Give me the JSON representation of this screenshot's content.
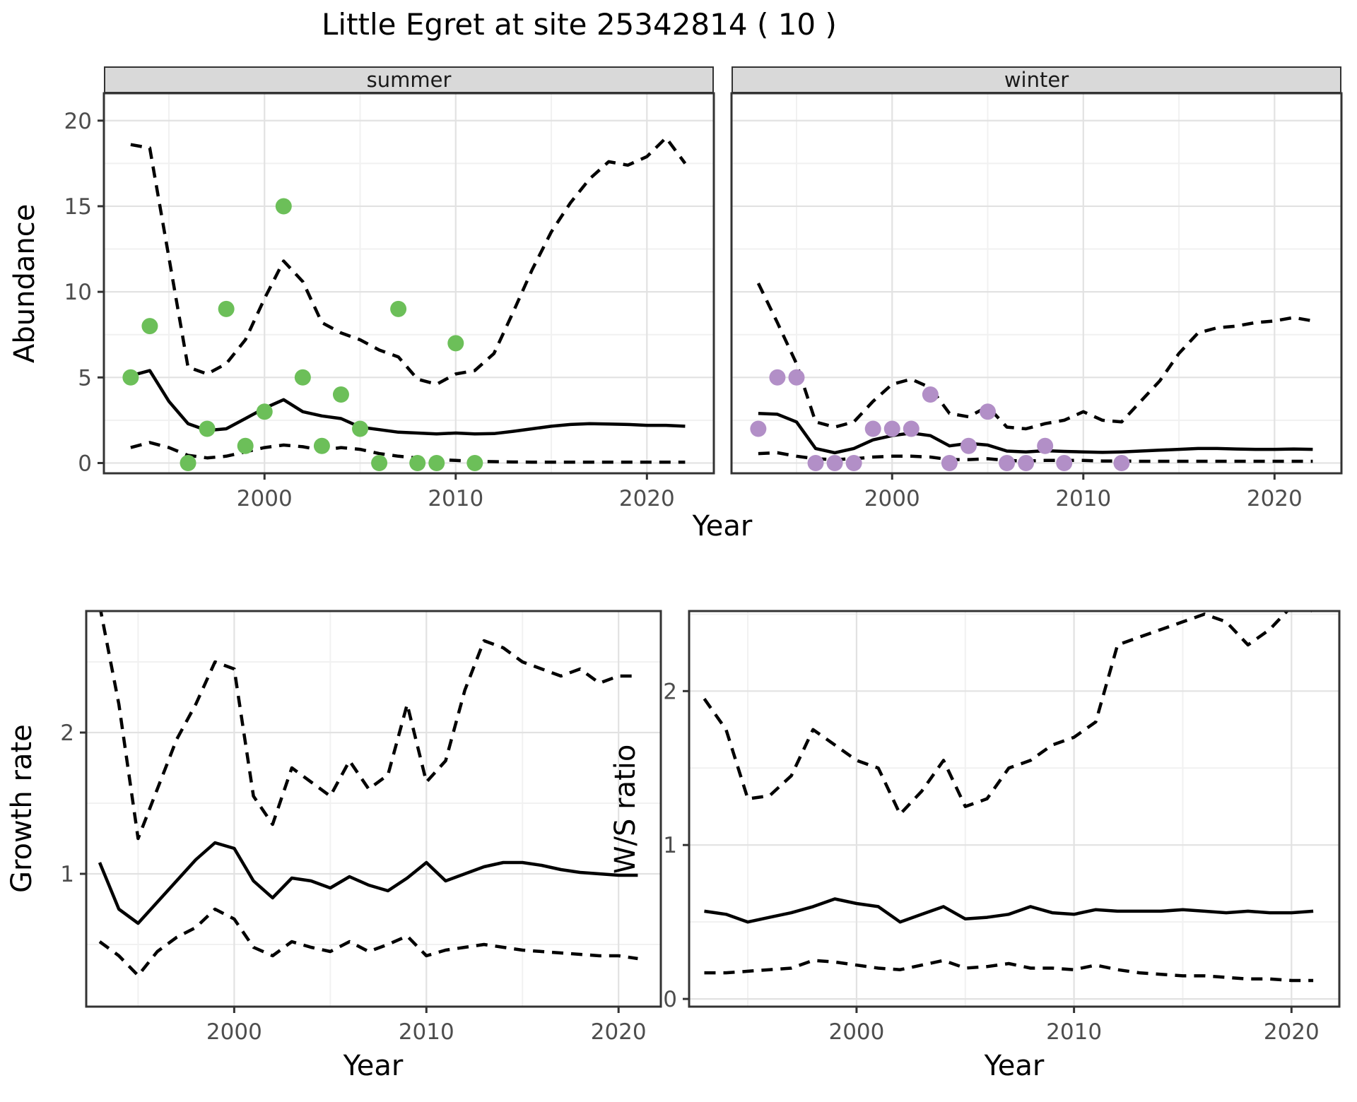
{
  "figure": {
    "title": "Little Egret at site 25342814 ( 10 )",
    "colors": {
      "summer_point": "#6CBF59",
      "winter_point": "#B28FC7",
      "line": "#000000",
      "grid_major": "#E2E2E2",
      "grid_minor": "#F1F1F1",
      "strip_bg": "#D9D9D9",
      "axis_text": "#4D4D4D",
      "panel_border": "#333333"
    }
  },
  "chart_data": [
    {
      "id": "abundance-summer",
      "type": "line",
      "facet_label": "summer",
      "ylabel": "Abundance",
      "xlabel": "Year",
      "xlim": [
        1991.6,
        2023.5
      ],
      "ylim": [
        -0.6,
        21.6
      ],
      "xticks": [
        2000,
        2010,
        2020
      ],
      "xticks_minor": [
        1995,
        2005,
        2015
      ],
      "yticks": [
        0,
        5,
        10,
        15,
        20
      ],
      "yticks_minor": [
        2.5,
        7.5,
        12.5,
        17.5
      ],
      "show_ytick_labels": true,
      "grid": true,
      "legend": "none",
      "points": {
        "color": "#6CBF59",
        "x": [
          1993,
          1994,
          1996,
          1997,
          1998,
          1999,
          2000,
          2001,
          2002,
          2003,
          2004,
          2005,
          2006,
          2007,
          2008,
          2009,
          2010,
          2011
        ],
        "y": [
          5,
          8,
          0,
          2,
          9,
          1,
          3,
          15,
          5,
          1,
          4,
          2,
          0,
          9,
          0,
          0,
          7,
          0
        ]
      },
      "series": [
        {
          "name": "median",
          "style": "solid",
          "x": [
            1993,
            1994,
            1995,
            1996,
            1997,
            1998,
            1999,
            2000,
            2001,
            2002,
            2003,
            2004,
            2005,
            2006,
            2007,
            2008,
            2009,
            2010,
            2011,
            2012,
            2013,
            2014,
            2015,
            2016,
            2017,
            2018,
            2019,
            2020,
            2021,
            2022
          ],
          "y": [
            5.1,
            5.4,
            3.6,
            2.3,
            1.9,
            2.0,
            2.6,
            3.2,
            3.7,
            3.0,
            2.75,
            2.6,
            2.1,
            1.95,
            1.8,
            1.75,
            1.7,
            1.75,
            1.7,
            1.72,
            1.85,
            2.0,
            2.15,
            2.25,
            2.3,
            2.28,
            2.25,
            2.2,
            2.2,
            2.15
          ]
        },
        {
          "name": "upper-ci",
          "style": "dashed",
          "x": [
            1993,
            1994,
            1995,
            1996,
            1997,
            1998,
            1999,
            2000,
            2001,
            2002,
            2003,
            2004,
            2005,
            2006,
            2007,
            2008,
            2009,
            2010,
            2011,
            2012,
            2013,
            2014,
            2015,
            2016,
            2017,
            2018,
            2019,
            2020,
            2021,
            2022
          ],
          "y": [
            18.6,
            18.4,
            12.0,
            5.6,
            5.2,
            5.8,
            7.2,
            9.6,
            11.8,
            10.6,
            8.2,
            7.6,
            7.2,
            6.6,
            6.2,
            4.9,
            4.6,
            5.2,
            5.4,
            6.4,
            8.8,
            11.3,
            13.5,
            15.2,
            16.6,
            17.6,
            17.4,
            17.9,
            19.0,
            17.5
          ]
        },
        {
          "name": "lower-ci",
          "style": "dashed",
          "x": [
            1993,
            1994,
            1995,
            1996,
            1997,
            1998,
            1999,
            2000,
            2001,
            2002,
            2003,
            2004,
            2005,
            2006,
            2007,
            2008,
            2009,
            2010,
            2011,
            2012,
            2013,
            2014,
            2015,
            2016,
            2017,
            2018,
            2019,
            2020,
            2021,
            2022
          ],
          "y": [
            0.9,
            1.2,
            0.9,
            0.45,
            0.3,
            0.4,
            0.65,
            0.9,
            1.05,
            0.95,
            0.75,
            0.9,
            0.8,
            0.55,
            0.4,
            0.3,
            0.2,
            0.15,
            0.1,
            0.08,
            0.06,
            0.05,
            0.05,
            0.05,
            0.05,
            0.05,
            0.05,
            0.05,
            0.05,
            0.05
          ]
        }
      ]
    },
    {
      "id": "abundance-winter",
      "type": "line",
      "facet_label": "winter",
      "ylabel": "Abundance",
      "xlabel": "Year",
      "xlim": [
        1991.6,
        2023.5
      ],
      "ylim": [
        -0.6,
        21.6
      ],
      "xticks": [
        2000,
        2010,
        2020
      ],
      "xticks_minor": [
        1995,
        2005,
        2015
      ],
      "yticks": [
        0,
        5,
        10,
        15,
        20
      ],
      "yticks_minor": [
        2.5,
        7.5,
        12.5,
        17.5
      ],
      "show_ytick_labels": false,
      "grid": true,
      "legend": "none",
      "points": {
        "color": "#B28FC7",
        "x": [
          1993,
          1994,
          1995,
          1996,
          1997,
          1998,
          1999,
          2000,
          2001,
          2002,
          2003,
          2004,
          2005,
          2006,
          2007,
          2008,
          2009,
          2012
        ],
        "y": [
          2,
          5,
          5,
          0,
          0,
          0,
          2,
          2,
          2,
          4,
          0,
          1,
          3,
          0,
          0,
          1,
          0,
          0
        ]
      },
      "series": [
        {
          "name": "median",
          "style": "solid",
          "x": [
            1993,
            1994,
            1995,
            1996,
            1997,
            1998,
            1999,
            2000,
            2001,
            2002,
            2003,
            2004,
            2005,
            2006,
            2007,
            2008,
            2009,
            2010,
            2011,
            2012,
            2013,
            2014,
            2015,
            2016,
            2017,
            2018,
            2019,
            2020,
            2021,
            2022
          ],
          "y": [
            2.9,
            2.85,
            2.4,
            0.85,
            0.6,
            0.85,
            1.35,
            1.6,
            1.75,
            1.6,
            1.0,
            1.15,
            1.05,
            0.7,
            0.65,
            0.72,
            0.68,
            0.65,
            0.62,
            0.65,
            0.7,
            0.75,
            0.8,
            0.85,
            0.85,
            0.82,
            0.8,
            0.8,
            0.82,
            0.8
          ]
        },
        {
          "name": "upper-ci",
          "style": "dashed",
          "x": [
            1993,
            1994,
            1995,
            1996,
            1997,
            1998,
            1999,
            2000,
            2001,
            2002,
            2003,
            2004,
            2005,
            2006,
            2007,
            2008,
            2009,
            2010,
            2011,
            2012,
            2013,
            2014,
            2015,
            2016,
            2017,
            2018,
            2019,
            2020,
            2021,
            2022
          ],
          "y": [
            10.5,
            8.2,
            5.8,
            2.4,
            2.1,
            2.4,
            3.6,
            4.6,
            4.9,
            4.4,
            2.9,
            2.7,
            3.3,
            2.1,
            2.0,
            2.3,
            2.5,
            3.0,
            2.5,
            2.4,
            3.6,
            4.8,
            6.4,
            7.6,
            7.9,
            8.0,
            8.2,
            8.3,
            8.5,
            8.3
          ]
        },
        {
          "name": "lower-ci",
          "style": "dashed",
          "x": [
            1993,
            1994,
            1995,
            1996,
            1997,
            1998,
            1999,
            2000,
            2001,
            2002,
            2003,
            2004,
            2005,
            2006,
            2007,
            2008,
            2009,
            2010,
            2011,
            2012,
            2013,
            2014,
            2015,
            2016,
            2017,
            2018,
            2019,
            2020,
            2021,
            2022
          ],
          "y": [
            0.55,
            0.6,
            0.4,
            0.25,
            0.2,
            0.25,
            0.35,
            0.4,
            0.4,
            0.35,
            0.2,
            0.2,
            0.25,
            0.15,
            0.12,
            0.15,
            0.15,
            0.15,
            0.12,
            0.12,
            0.1,
            0.1,
            0.1,
            0.1,
            0.1,
            0.1,
            0.1,
            0.1,
            0.1,
            0.1
          ]
        }
      ]
    },
    {
      "id": "growth-rate",
      "type": "line",
      "facet_label": "",
      "ylabel": "Growth rate",
      "xlabel": "Year",
      "xlim": [
        1992.3,
        2022.2
      ],
      "ylim": [
        0.06,
        2.86
      ],
      "xticks": [
        2000,
        2010,
        2020
      ],
      "xticks_minor": [
        1995,
        2005,
        2015
      ],
      "yticks": [
        1,
        2
      ],
      "yticks_minor": [
        0.5,
        1.5,
        2.5
      ],
      "show_ytick_labels": true,
      "grid": true,
      "legend": "none",
      "series": [
        {
          "name": "median",
          "style": "solid",
          "x": [
            1993,
            1994,
            1995,
            1996,
            1997,
            1998,
            1999,
            2000,
            2001,
            2002,
            2003,
            2004,
            2005,
            2006,
            2007,
            2008,
            2009,
            2010,
            2011,
            2012,
            2013,
            2014,
            2015,
            2016,
            2017,
            2018,
            2019,
            2020,
            2021
          ],
          "y": [
            1.08,
            0.75,
            0.65,
            0.8,
            0.95,
            1.1,
            1.22,
            1.18,
            0.95,
            0.83,
            0.97,
            0.95,
            0.9,
            0.98,
            0.92,
            0.88,
            0.97,
            1.08,
            0.95,
            1.0,
            1.05,
            1.08,
            1.08,
            1.06,
            1.03,
            1.01,
            1.0,
            0.99,
            0.99
          ]
        },
        {
          "name": "upper-ci",
          "style": "dashed",
          "x": [
            1993,
            1994,
            1995,
            1996,
            1997,
            1998,
            1999,
            2000,
            2001,
            2002,
            2003,
            2004,
            2005,
            2006,
            2007,
            2008,
            2009,
            2010,
            2011,
            2012,
            2013,
            2014,
            2015,
            2016,
            2017,
            2018,
            2019,
            2020,
            2021
          ],
          "y": [
            2.9,
            2.2,
            1.25,
            1.6,
            1.95,
            2.2,
            2.5,
            2.45,
            1.55,
            1.35,
            1.75,
            1.65,
            1.55,
            1.8,
            1.6,
            1.7,
            2.2,
            1.65,
            1.8,
            2.3,
            2.65,
            2.6,
            2.5,
            2.45,
            2.4,
            2.45,
            2.35,
            2.4,
            2.4
          ]
        },
        {
          "name": "lower-ci",
          "style": "dashed",
          "x": [
            1993,
            1994,
            1995,
            1996,
            1997,
            1998,
            1999,
            2000,
            2001,
            2002,
            2003,
            2004,
            2005,
            2006,
            2007,
            2008,
            2009,
            2010,
            2011,
            2012,
            2013,
            2014,
            2015,
            2016,
            2017,
            2018,
            2019,
            2020,
            2021
          ],
          "y": [
            0.52,
            0.42,
            0.28,
            0.45,
            0.55,
            0.62,
            0.75,
            0.68,
            0.48,
            0.42,
            0.52,
            0.48,
            0.45,
            0.52,
            0.45,
            0.5,
            0.56,
            0.42,
            0.46,
            0.48,
            0.5,
            0.48,
            0.46,
            0.45,
            0.44,
            0.43,
            0.42,
            0.42,
            0.4
          ]
        }
      ]
    },
    {
      "id": "ws-ratio",
      "type": "line",
      "facet_label": "",
      "ylabel": "W/S ratio",
      "xlabel": "Year",
      "xlim": [
        1992.3,
        2022.2
      ],
      "ylim": [
        -0.05,
        2.52
      ],
      "xticks": [
        2000,
        2010,
        2020
      ],
      "xticks_minor": [
        1995,
        2005,
        2015
      ],
      "yticks": [
        0,
        1,
        2
      ],
      "yticks_minor": [
        0.5,
        1.5,
        2.5
      ],
      "show_ytick_labels": true,
      "grid": true,
      "legend": "none",
      "series": [
        {
          "name": "median",
          "style": "solid",
          "x": [
            1993,
            1994,
            1995,
            1996,
            1997,
            1998,
            1999,
            2000,
            2001,
            2002,
            2003,
            2004,
            2005,
            2006,
            2007,
            2008,
            2009,
            2010,
            2011,
            2012,
            2013,
            2014,
            2015,
            2016,
            2017,
            2018,
            2019,
            2020,
            2021
          ],
          "y": [
            0.57,
            0.55,
            0.5,
            0.53,
            0.56,
            0.6,
            0.65,
            0.62,
            0.6,
            0.5,
            0.55,
            0.6,
            0.52,
            0.53,
            0.55,
            0.6,
            0.56,
            0.55,
            0.58,
            0.57,
            0.57,
            0.57,
            0.58,
            0.57,
            0.56,
            0.57,
            0.56,
            0.56,
            0.57
          ]
        },
        {
          "name": "upper-ci",
          "style": "dashed",
          "x": [
            1993,
            1994,
            1995,
            1996,
            1997,
            1998,
            1999,
            2000,
            2001,
            2002,
            2003,
            2004,
            2005,
            2006,
            2007,
            2008,
            2009,
            2010,
            2011,
            2012,
            2013,
            2014,
            2015,
            2016,
            2017,
            2018,
            2019,
            2020,
            2021
          ],
          "y": [
            1.95,
            1.75,
            1.3,
            1.32,
            1.45,
            1.75,
            1.65,
            1.55,
            1.5,
            1.2,
            1.35,
            1.55,
            1.25,
            1.3,
            1.5,
            1.55,
            1.65,
            1.7,
            1.8,
            2.3,
            2.35,
            2.4,
            2.45,
            2.5,
            2.45,
            2.3,
            2.4,
            2.55,
            2.52
          ]
        },
        {
          "name": "lower-ci",
          "style": "dashed",
          "x": [
            1993,
            1994,
            1995,
            1996,
            1997,
            1998,
            1999,
            2000,
            2001,
            2002,
            2003,
            2004,
            2005,
            2006,
            2007,
            2008,
            2009,
            2010,
            2011,
            2012,
            2013,
            2014,
            2015,
            2016,
            2017,
            2018,
            2019,
            2020,
            2021
          ],
          "y": [
            0.17,
            0.17,
            0.18,
            0.19,
            0.2,
            0.25,
            0.24,
            0.22,
            0.2,
            0.19,
            0.22,
            0.25,
            0.2,
            0.21,
            0.23,
            0.2,
            0.2,
            0.19,
            0.22,
            0.19,
            0.17,
            0.16,
            0.15,
            0.15,
            0.14,
            0.13,
            0.13,
            0.12,
            0.12
          ]
        }
      ]
    }
  ]
}
